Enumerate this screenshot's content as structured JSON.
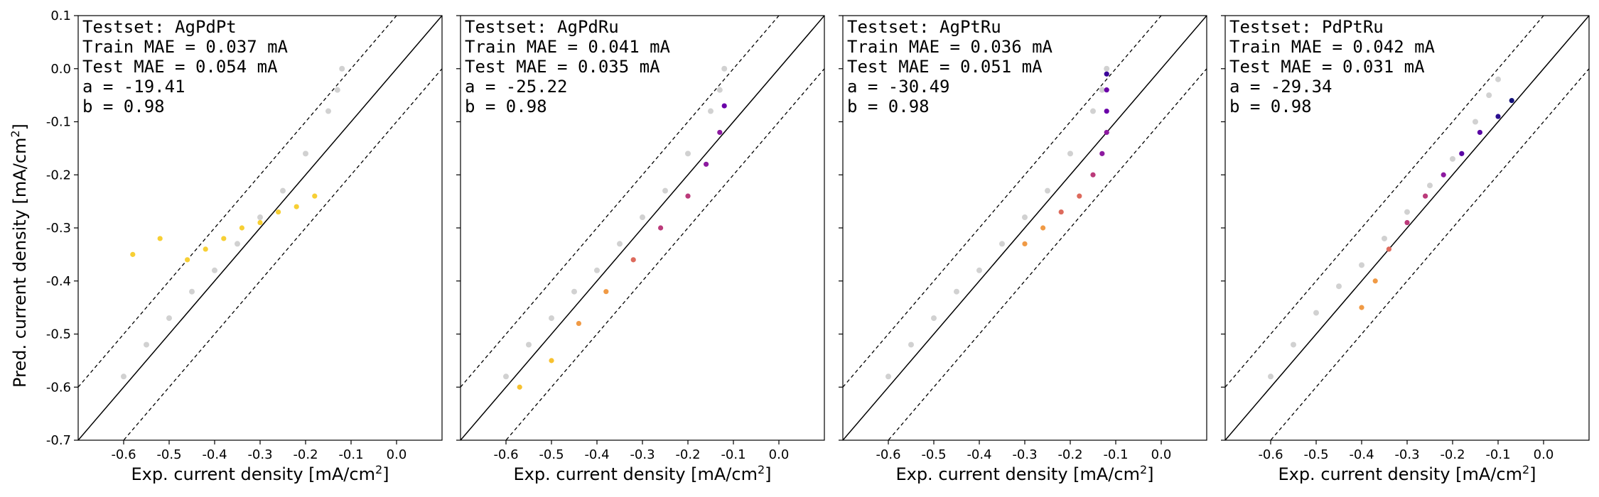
{
  "figure": {
    "ylabel_main": "Pred. current density [mA/cm",
    "xlabel_main": "Exp. current density [mA/cm",
    "unit_exp": "2",
    "unit_close": "]"
  },
  "chart_data": [
    {
      "type": "scatter",
      "annotations": [
        "Testset: AgPdPt",
        "Train MAE = 0.037 mA",
        "Test MAE = 0.054 mA",
        "a = -19.41",
        "b = 0.98"
      ],
      "xlim": [
        -0.7,
        0.1
      ],
      "ylim": [
        -0.7,
        0.1
      ],
      "xticks": [
        -0.6,
        -0.5,
        -0.4,
        -0.3,
        -0.2,
        -0.1,
        0.0
      ],
      "yticks": [
        -0.7,
        -0.6,
        -0.5,
        -0.4,
        -0.3,
        -0.2,
        -0.1,
        0.0,
        0.1
      ],
      "ytick_labels_visible": true,
      "reference_lines": {
        "identity": true,
        "band_offset": 0.1
      },
      "train_series": {
        "color": "#9a9a9a",
        "x": [
          -0.6,
          -0.55,
          -0.5,
          -0.45,
          -0.4,
          -0.35,
          -0.3,
          -0.25,
          -0.2,
          -0.15,
          -0.13,
          -0.12
        ],
        "y": [
          -0.58,
          -0.52,
          -0.47,
          -0.42,
          -0.38,
          -0.33,
          -0.28,
          -0.23,
          -0.16,
          -0.08,
          -0.04,
          0.0
        ]
      },
      "test_series": {
        "colors": [
          "#f7cf34"
        ],
        "x": [
          -0.58,
          -0.52,
          -0.46,
          -0.42,
          -0.38,
          -0.34,
          -0.3,
          -0.26,
          -0.22,
          -0.18
        ],
        "y": [
          -0.35,
          -0.32,
          -0.36,
          -0.34,
          -0.32,
          -0.3,
          -0.29,
          -0.27,
          -0.26,
          -0.24
        ]
      }
    },
    {
      "type": "scatter",
      "annotations": [
        "Testset: AgPdRu",
        "Train MAE = 0.041 mA",
        "Test MAE = 0.035 mA",
        "a = -25.22",
        "b = 0.98"
      ],
      "xlim": [
        -0.7,
        0.1
      ],
      "ylim": [
        -0.7,
        0.1
      ],
      "xticks": [
        -0.6,
        -0.5,
        -0.4,
        -0.3,
        -0.2,
        -0.1,
        0.0
      ],
      "yticks": [
        -0.7,
        -0.6,
        -0.5,
        -0.4,
        -0.3,
        -0.2,
        -0.1,
        0.0,
        0.1
      ],
      "ytick_labels_visible": false,
      "reference_lines": {
        "identity": true,
        "band_offset": 0.1
      },
      "train_series": {
        "color": "#9a9a9a",
        "x": [
          -0.6,
          -0.55,
          -0.5,
          -0.45,
          -0.4,
          -0.35,
          -0.3,
          -0.25,
          -0.2,
          -0.15,
          -0.13,
          -0.12
        ],
        "y": [
          -0.58,
          -0.52,
          -0.47,
          -0.42,
          -0.38,
          -0.33,
          -0.28,
          -0.23,
          -0.16,
          -0.08,
          -0.04,
          0.0
        ]
      },
      "test_series": {
        "colors": [
          "#f7c12f",
          "#f09a45",
          "#dd6a5c",
          "#bb3a7a",
          "#8d1aa0",
          "#6a00a8"
        ],
        "x": [
          -0.57,
          -0.5,
          -0.44,
          -0.38,
          -0.32,
          -0.26,
          -0.2,
          -0.16,
          -0.13,
          -0.12
        ],
        "y": [
          -0.6,
          -0.55,
          -0.48,
          -0.42,
          -0.36,
          -0.3,
          -0.24,
          -0.18,
          -0.12,
          -0.07
        ]
      }
    },
    {
      "type": "scatter",
      "annotations": [
        "Testset: AgPtRu",
        "Train MAE = 0.036 mA",
        "Test MAE = 0.051 mA",
        "a = -30.49",
        "b = 0.98"
      ],
      "xlim": [
        -0.7,
        0.1
      ],
      "ylim": [
        -0.7,
        0.1
      ],
      "xticks": [
        -0.6,
        -0.5,
        -0.4,
        -0.3,
        -0.2,
        -0.1,
        0.0
      ],
      "yticks": [
        -0.7,
        -0.6,
        -0.5,
        -0.4,
        -0.3,
        -0.2,
        -0.1,
        0.0,
        0.1
      ],
      "ytick_labels_visible": false,
      "reference_lines": {
        "identity": true,
        "band_offset": 0.1
      },
      "train_series": {
        "color": "#9a9a9a",
        "x": [
          -0.6,
          -0.55,
          -0.5,
          -0.45,
          -0.4,
          -0.35,
          -0.3,
          -0.25,
          -0.2,
          -0.15,
          -0.13,
          -0.12
        ],
        "y": [
          -0.58,
          -0.52,
          -0.47,
          -0.42,
          -0.38,
          -0.33,
          -0.28,
          -0.23,
          -0.16,
          -0.08,
          -0.04,
          0.0
        ]
      },
      "test_series": {
        "colors": [
          "#f09a45",
          "#dd6a5c",
          "#bb3a7a",
          "#8d1aa0",
          "#6a00a8",
          "#3b049a"
        ],
        "x": [
          -0.3,
          -0.26,
          -0.22,
          -0.18,
          -0.15,
          -0.13,
          -0.12,
          -0.12,
          -0.12,
          -0.12
        ],
        "y": [
          -0.33,
          -0.3,
          -0.27,
          -0.24,
          -0.2,
          -0.16,
          -0.12,
          -0.08,
          -0.04,
          -0.01
        ]
      }
    },
    {
      "type": "scatter",
      "annotations": [
        "Testset: PdPtRu",
        "Train MAE = 0.042 mA",
        "Test MAE = 0.031 mA",
        "a = -29.34",
        "b = 0.98"
      ],
      "xlim": [
        -0.7,
        0.1
      ],
      "ylim": [
        -0.7,
        0.1
      ],
      "xticks": [
        -0.6,
        -0.5,
        -0.4,
        -0.3,
        -0.2,
        -0.1,
        0.0
      ],
      "yticks": [
        -0.7,
        -0.6,
        -0.5,
        -0.4,
        -0.3,
        -0.2,
        -0.1,
        0.0,
        0.1
      ],
      "ytick_labels_visible": false,
      "reference_lines": {
        "identity": true,
        "band_offset": 0.1
      },
      "train_series": {
        "color": "#9a9a9a",
        "x": [
          -0.6,
          -0.55,
          -0.5,
          -0.45,
          -0.4,
          -0.35,
          -0.3,
          -0.25,
          -0.2,
          -0.15,
          -0.12,
          -0.1
        ],
        "y": [
          -0.58,
          -0.52,
          -0.46,
          -0.41,
          -0.37,
          -0.32,
          -0.27,
          -0.22,
          -0.17,
          -0.1,
          -0.05,
          -0.02
        ]
      },
      "test_series": {
        "colors": [
          "#f09a45",
          "#dd6a5c",
          "#bb3a7a",
          "#8d1aa0",
          "#5a06a4",
          "#2a0e90",
          "#14127a"
        ],
        "x": [
          -0.4,
          -0.37,
          -0.34,
          -0.3,
          -0.26,
          -0.22,
          -0.18,
          -0.14,
          -0.1,
          -0.07
        ],
        "y": [
          -0.45,
          -0.4,
          -0.34,
          -0.29,
          -0.24,
          -0.2,
          -0.16,
          -0.12,
          -0.09,
          -0.06
        ]
      }
    }
  ]
}
